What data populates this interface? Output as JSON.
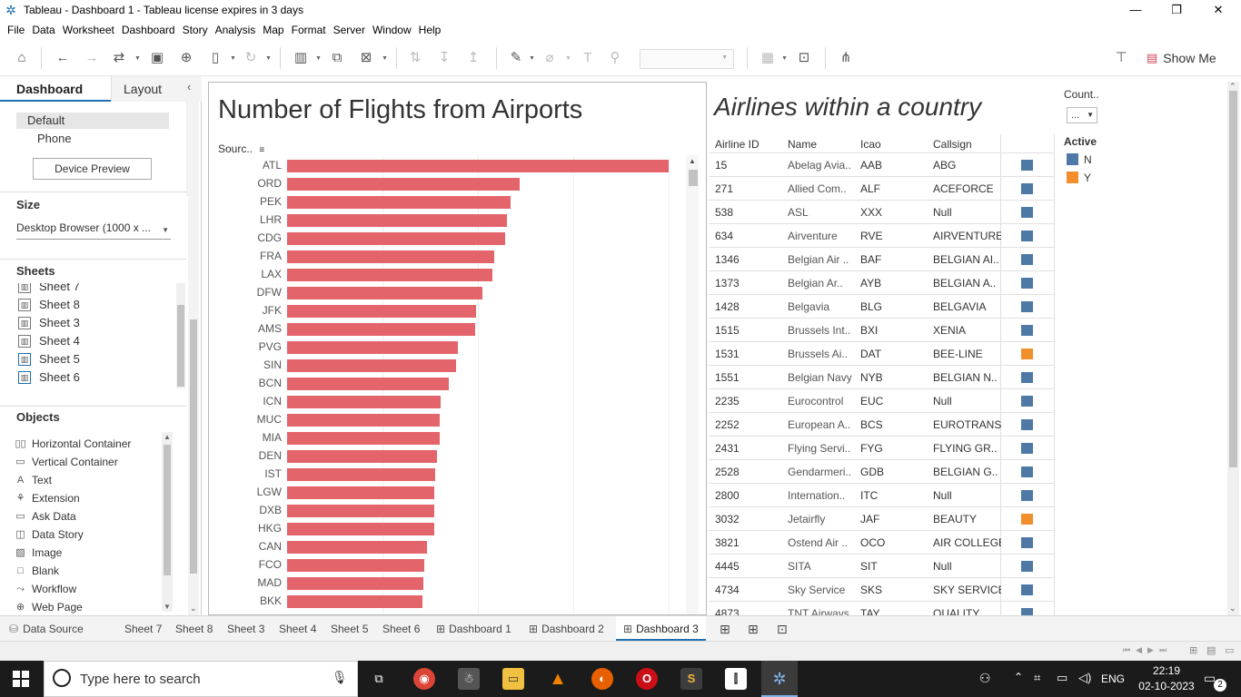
{
  "window": {
    "title": "Tableau - Dashboard 1 - Tableau license expires in 3 days",
    "minimize": "—",
    "restore": "❐",
    "close": "✕"
  },
  "menu": [
    "File",
    "Data",
    "Worksheet",
    "Dashboard",
    "Story",
    "Analysis",
    "Map",
    "Format",
    "Server",
    "Window",
    "Help"
  ],
  "toolbar": {
    "show_me": "Show Me"
  },
  "left": {
    "tab_dashboard": "Dashboard",
    "tab_layout": "Layout",
    "device_default": "Default",
    "device_phone": "Phone",
    "device_preview": "Device Preview",
    "size_title": "Size",
    "size_value": "Desktop Browser (1000 x ...",
    "sheets_title": "Sheets",
    "sheets": [
      "Sheet 7",
      "Sheet 8",
      "Sheet 3",
      "Sheet 4",
      "Sheet 5",
      "Sheet 6"
    ],
    "objects_title": "Objects",
    "objects": [
      "Horizontal Container",
      "Vertical Container",
      "Text",
      "Extension",
      "Ask Data",
      "Data Story",
      "Image",
      "Blank",
      "Workflow",
      "Web Page"
    ]
  },
  "chart": {
    "title": "Number of Flights from Airports",
    "sort_header": "Sourc.."
  },
  "chart_data": {
    "type": "bar",
    "orientation": "horizontal",
    "title": "Number of Flights from Airports",
    "ylabel": "Sourc..",
    "categories": [
      "ATL",
      "ORD",
      "PEK",
      "LHR",
      "CDG",
      "FRA",
      "LAX",
      "DFW",
      "JFK",
      "AMS",
      "PVG",
      "SIN",
      "BCN",
      "ICN",
      "MUC",
      "MIA",
      "DEN",
      "IST",
      "LGW",
      "DXB",
      "HKG",
      "CAN",
      "FCO",
      "MAD",
      "BKK"
    ],
    "values": [
      419,
      255,
      245,
      241,
      239,
      227,
      225,
      214,
      208,
      207,
      188,
      186,
      178,
      169,
      168,
      168,
      165,
      163,
      162,
      162,
      162,
      154,
      151,
      150,
      149
    ]
  },
  "table": {
    "title": "Airlines within a country",
    "headers": [
      "Airline ID",
      "Name",
      "Icao",
      "Callsign"
    ],
    "rows": [
      {
        "id": "15",
        "name": "Abelag Avia..",
        "icao": "AAB",
        "callsign": "ABG",
        "active": "N"
      },
      {
        "id": "271",
        "name": "Allied Com..",
        "icao": "ALF",
        "callsign": "ACEFORCE",
        "active": "N"
      },
      {
        "id": "538",
        "name": "ASL",
        "icao": "XXX",
        "callsign": "Null",
        "active": "N"
      },
      {
        "id": "634",
        "name": "Airventure",
        "icao": "RVE",
        "callsign": "AIRVENTURE",
        "active": "N"
      },
      {
        "id": "1346",
        "name": "Belgian Air ..",
        "icao": "BAF",
        "callsign": "BELGIAN AI..",
        "active": "N"
      },
      {
        "id": "1373",
        "name": "Belgian Ar..",
        "icao": "AYB",
        "callsign": "BELGIAN A..",
        "active": "N"
      },
      {
        "id": "1428",
        "name": "Belgavia",
        "icao": "BLG",
        "callsign": "BELGAVIA",
        "active": "N"
      },
      {
        "id": "1515",
        "name": "Brussels Int..",
        "icao": "BXI",
        "callsign": "XENIA",
        "active": "N"
      },
      {
        "id": "1531",
        "name": "Brussels Ai..",
        "icao": "DAT",
        "callsign": "BEE-LINE",
        "active": "Y"
      },
      {
        "id": "1551",
        "name": "Belgian Navy",
        "icao": "NYB",
        "callsign": "BELGIAN N..",
        "active": "N"
      },
      {
        "id": "2235",
        "name": "Eurocontrol",
        "icao": "EUC",
        "callsign": "Null",
        "active": "N"
      },
      {
        "id": "2252",
        "name": "European A..",
        "icao": "BCS",
        "callsign": "EUROTRANS",
        "active": "N"
      },
      {
        "id": "2431",
        "name": "Flying Servi..",
        "icao": "FYG",
        "callsign": "FLYING GR..",
        "active": "N"
      },
      {
        "id": "2528",
        "name": "Gendarmeri..",
        "icao": "GDB",
        "callsign": "BELGIAN G..",
        "active": "N"
      },
      {
        "id": "2800",
        "name": "Internation..",
        "icao": "ITC",
        "callsign": "Null",
        "active": "N"
      },
      {
        "id": "3032",
        "name": "Jetairfly",
        "icao": "JAF",
        "callsign": "BEAUTY",
        "active": "Y"
      },
      {
        "id": "3821",
        "name": "Ostend Air ..",
        "icao": "OCO",
        "callsign": "AIR COLLEGE",
        "active": "N"
      },
      {
        "id": "4445",
        "name": "SITA",
        "icao": "SIT",
        "callsign": "Null",
        "active": "N"
      },
      {
        "id": "4734",
        "name": "Sky Service",
        "icao": "SKS",
        "callsign": "SKY SERVICE",
        "active": "N"
      },
      {
        "id": "4873",
        "name": "TNT Airways",
        "icao": "TAY",
        "callsign": "QUALITY",
        "active": "N"
      }
    ]
  },
  "legend": {
    "filter_title": "Count..",
    "filter_value": "...",
    "title": "Active",
    "items": [
      {
        "label": "N",
        "color": "#4e79a7"
      },
      {
        "label": "Y",
        "color": "#f28e2b"
      }
    ]
  },
  "bottom_tabs": [
    "Data Source",
    "Sheet 7",
    "Sheet 8",
    "Sheet 3",
    "Sheet 4",
    "Sheet 5",
    "Sheet 6",
    "Dashboard 1",
    "Dashboard 2",
    "Dashboard 3"
  ],
  "active_tab": "Dashboard 3",
  "taskbar": {
    "search_placeholder": "Type here to search",
    "lang": "ENG",
    "time": "22:19",
    "date": "02-10-2023",
    "notifications": "2"
  }
}
